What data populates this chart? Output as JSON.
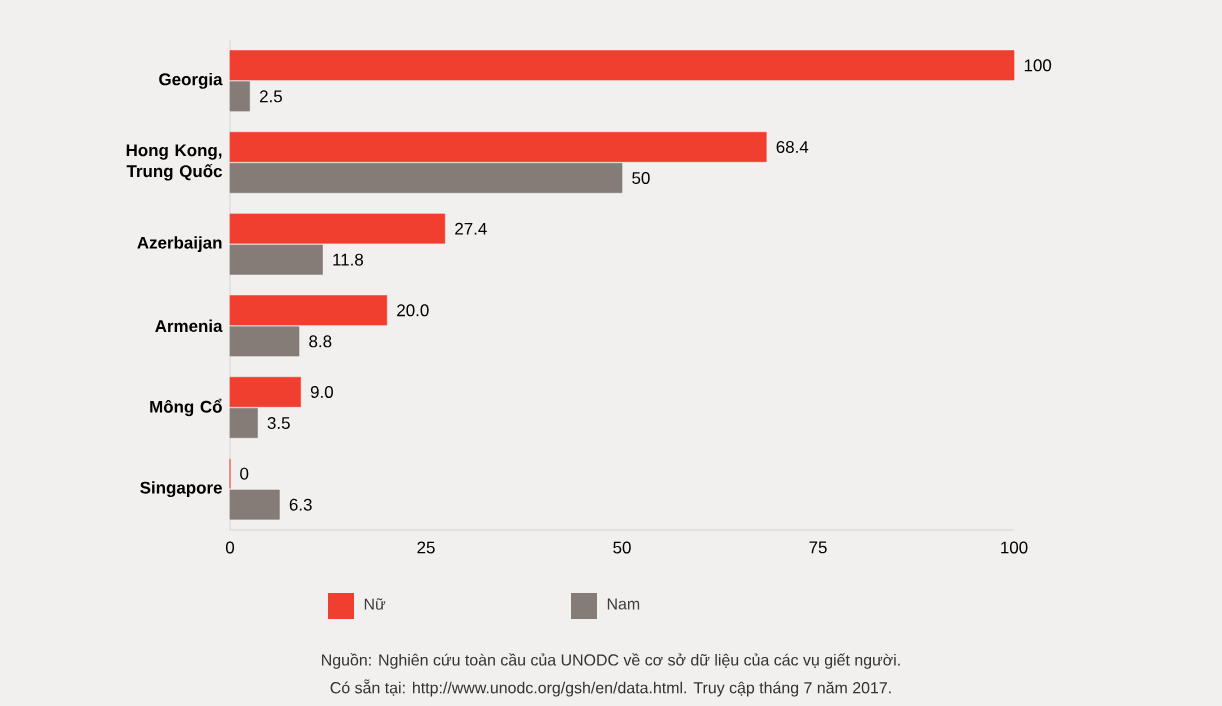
{
  "chart_data": {
    "type": "bar",
    "orientation": "horizontal",
    "categories": [
      "Georgia",
      "Hong Kong, Trung Quốc",
      "Azerbaijan",
      "Armenia",
      "Mông Cổ",
      "Singapore"
    ],
    "series": [
      {
        "name": "Nữ",
        "color": "#f03e2f",
        "values": [
          100,
          68.4,
          27.4,
          20.0,
          9.0,
          0
        ],
        "value_labels": [
          "100",
          "68.4",
          "27.4",
          "20.0",
          "9.0",
          "0"
        ]
      },
      {
        "name": "Nam",
        "color": "#857c78",
        "values": [
          2.5,
          50,
          11.8,
          8.8,
          3.5,
          6.3
        ],
        "value_labels": [
          "2.5",
          "50",
          "11.8",
          "8.8",
          "3.5",
          "6.3"
        ]
      }
    ],
    "xlim": [
      0,
      100
    ],
    "xticks": [
      0,
      25,
      50,
      75,
      100
    ],
    "legend": "bottom",
    "annotations": [
      "Nguồn: Nghiên cứu toàn cầu của UNODC về cơ sở dữ liệu của các vụ giết người.",
      "Có sẵn tại: http://www.unodc.org/gsh/en/data.html. Truy cập tháng 7 năm 2017."
    ]
  }
}
